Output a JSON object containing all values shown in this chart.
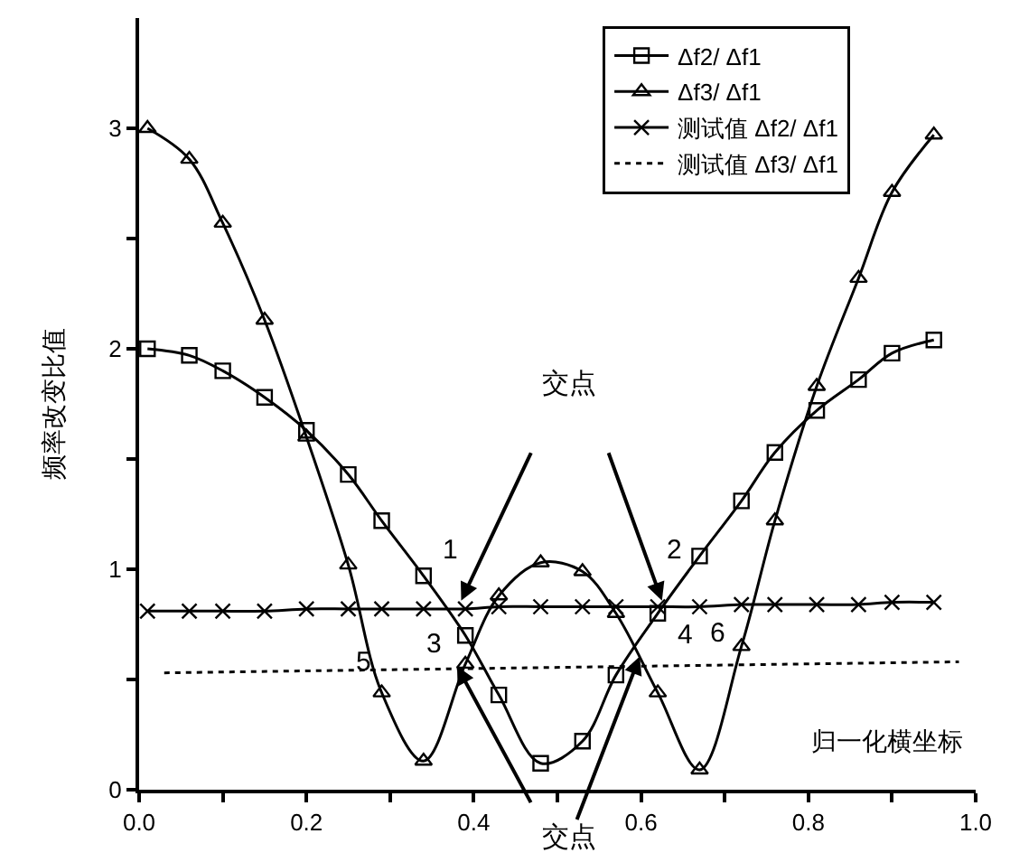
{
  "chart_data": {
    "type": "line",
    "xlabel": "归一化横坐标",
    "ylabel": "频率改变比值",
    "xlim": [
      0,
      1.0
    ],
    "ylim": [
      0,
      3.5
    ],
    "xticks": [
      {
        "value": 0,
        "label": "0.0"
      },
      {
        "value": 0.1,
        "label": null
      },
      {
        "value": 0.2,
        "label": "0.2"
      },
      {
        "value": 0.3,
        "label": null
      },
      {
        "value": 0.4,
        "label": "0.4"
      },
      {
        "value": 0.5,
        "label": null
      },
      {
        "value": 0.6,
        "label": "0.6"
      },
      {
        "value": 0.7,
        "label": null
      },
      {
        "value": 0.8,
        "label": "0.8"
      },
      {
        "value": 0.9,
        "label": null
      },
      {
        "value": 1.0,
        "label": "1.0"
      }
    ],
    "yticks": [
      0,
      {
        "value": 0.5,
        "label": null
      },
      1,
      {
        "value": 1.5,
        "label": null
      },
      2,
      {
        "value": 2.5,
        "label": null
      },
      3
    ],
    "x": [
      0.01,
      0.06,
      0.1,
      0.15,
      0.2,
      0.25,
      0.29,
      0.34,
      0.39,
      0.43,
      0.48,
      0.53,
      0.57,
      0.62,
      0.67,
      0.72,
      0.76,
      0.81,
      0.86,
      0.9,
      0.95
    ],
    "series": [
      {
        "name": "Δf2/ Δf1",
        "color": "#000000",
        "marker": "square",
        "line_style": "solid",
        "values": [
          2.0,
          1.97,
          1.9,
          1.78,
          1.63,
          1.43,
          1.22,
          0.97,
          0.7,
          0.43,
          0.12,
          0.22,
          0.52,
          0.8,
          1.06,
          1.31,
          1.53,
          1.72,
          1.86,
          1.98,
          2.04
        ]
      },
      {
        "name": "Δf3/ Δf1",
        "color": "#000000",
        "marker": "triangle",
        "line_style": "solid",
        "values": [
          3.0,
          2.86,
          2.57,
          2.13,
          1.6,
          1.02,
          0.44,
          0.13,
          0.57,
          0.88,
          1.03,
          0.99,
          0.8,
          0.44,
          0.09,
          0.65,
          1.22,
          1.83,
          2.32,
          2.71,
          2.97
        ]
      },
      {
        "name": "测试值 Δf2/ Δf1",
        "color": "#000000",
        "marker": "cross",
        "line_style": "solid",
        "values": [
          0.81,
          0.81,
          0.81,
          0.81,
          0.82,
          0.82,
          0.82,
          0.82,
          0.82,
          0.83,
          0.83,
          0.83,
          0.83,
          0.83,
          0.83,
          0.84,
          0.84,
          0.84,
          0.84,
          0.85,
          0.85
        ]
      },
      {
        "name": "测试值 Δf3/ Δf1",
        "color": "#000000",
        "marker": "none",
        "line_style": "dotted",
        "x": [
          0.03,
          0.98
        ],
        "values": [
          0.53,
          0.58
        ]
      }
    ],
    "annotations": [
      "交点",
      {
        "text": "交点",
        "x": 0.6,
        "y": 0.62
      },
      "1",
      "2",
      "3",
      "4",
      "5",
      "6"
    ],
    "legend": "top right"
  }
}
